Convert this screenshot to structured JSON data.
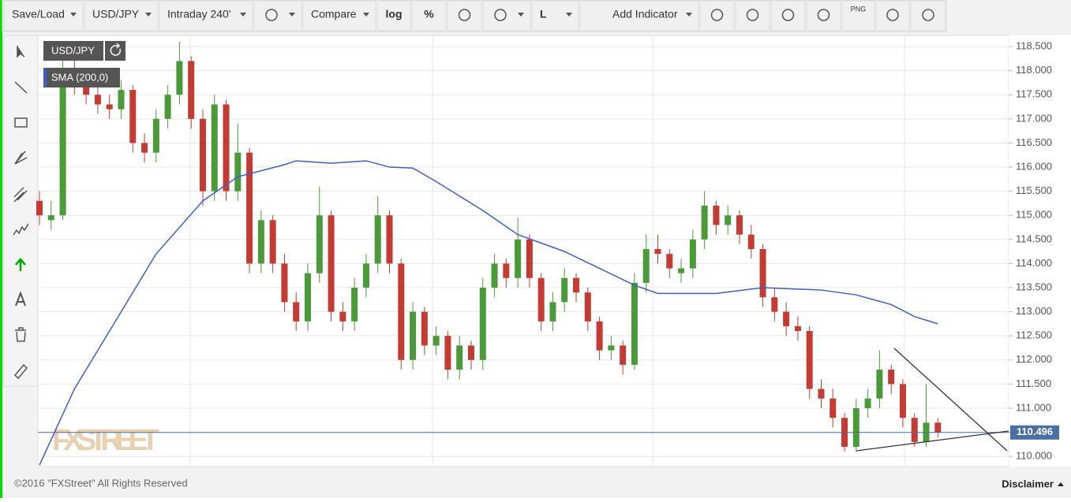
{
  "toolbar": {
    "items": [
      "Save/Load",
      "USD/JPY",
      "Intraday 240'",
      "Compare",
      "log",
      "%",
      "L",
      "Add Indicator"
    ],
    "png": "PNG"
  },
  "chart_data": {
    "type": "candlestick",
    "xlim": [
      0,
      83
    ],
    "ylim": [
      109.79,
      118.73
    ],
    "yticks": [
      {
        "value": 110,
        "label": "110.000"
      },
      {
        "value": 110.5,
        "label": "110.500"
      },
      {
        "value": 111,
        "label": "111.000"
      },
      {
        "value": 111.5,
        "label": "111.500"
      },
      {
        "value": 112,
        "label": "112.000"
      },
      {
        "value": 112.5,
        "label": "112.500"
      },
      {
        "value": 113,
        "label": "113.000"
      },
      {
        "value": 113.5,
        "label": "113.500"
      },
      {
        "value": 114,
        "label": "114.000"
      },
      {
        "value": 114.5,
        "label": "114.500"
      },
      {
        "value": 115,
        "label": "115.000"
      },
      {
        "value": 115.5,
        "label": "115.500"
      },
      {
        "value": 116,
        "label": "116.000"
      },
      {
        "value": 116.5,
        "label": "116.500"
      },
      {
        "value": 117,
        "label": "117.000"
      },
      {
        "value": 117.5,
        "label": "117.500"
      },
      {
        "value": 118,
        "label": "118.000"
      },
      {
        "value": 118.5,
        "label": "118.500"
      }
    ],
    "grid": true,
    "up_color": "#4a9a3a",
    "down_color": "#c43b33",
    "series": [
      {
        "name": "USD/JPY",
        "values": [
          [
            115.3,
            115.5,
            114.8,
            115.0
          ],
          [
            114.9,
            115.3,
            114.7,
            115.0
          ],
          [
            115.0,
            118.6,
            114.9,
            118.0
          ],
          [
            118.0,
            118.3,
            117.5,
            117.7
          ],
          [
            117.7,
            117.9,
            117.3,
            117.5
          ],
          [
            117.5,
            117.7,
            117.1,
            117.3
          ],
          [
            117.3,
            117.5,
            117.0,
            117.2
          ],
          [
            117.2,
            117.8,
            117.0,
            117.6
          ],
          [
            117.6,
            117.7,
            116.3,
            116.5
          ],
          [
            116.5,
            116.7,
            116.1,
            116.3
          ],
          [
            116.3,
            117.2,
            116.1,
            117.0
          ],
          [
            117.0,
            117.7,
            116.8,
            117.5
          ],
          [
            117.5,
            118.6,
            117.3,
            118.2
          ],
          [
            118.2,
            118.3,
            116.8,
            117.0
          ],
          [
            117.0,
            117.2,
            115.2,
            115.5
          ],
          [
            115.5,
            117.5,
            115.3,
            117.3
          ],
          [
            117.3,
            117.4,
            115.3,
            115.5
          ],
          [
            115.5,
            116.9,
            115.3,
            116.3
          ],
          [
            116.3,
            116.4,
            113.8,
            114.0
          ],
          [
            114.0,
            115.1,
            113.8,
            114.9
          ],
          [
            114.9,
            115.0,
            113.8,
            114.0
          ],
          [
            114.0,
            114.2,
            113.0,
            113.2
          ],
          [
            113.2,
            113.4,
            112.6,
            112.8
          ],
          [
            112.8,
            114.0,
            112.6,
            113.8
          ],
          [
            113.8,
            115.6,
            113.6,
            115.0
          ],
          [
            115.0,
            115.1,
            112.8,
            113.0
          ],
          [
            113.0,
            113.2,
            112.6,
            112.8
          ],
          [
            112.8,
            113.7,
            112.6,
            113.5
          ],
          [
            113.5,
            114.2,
            113.3,
            114.0
          ],
          [
            114.0,
            115.4,
            113.8,
            115.0
          ],
          [
            115.0,
            115.1,
            113.8,
            114.0
          ],
          [
            114.0,
            114.1,
            111.8,
            112.0
          ],
          [
            112.0,
            113.2,
            111.8,
            113.0
          ],
          [
            113.0,
            113.1,
            112.1,
            112.3
          ],
          [
            112.3,
            112.7,
            112.1,
            112.5
          ],
          [
            112.5,
            112.6,
            111.6,
            111.8
          ],
          [
            111.8,
            112.5,
            111.6,
            112.3
          ],
          [
            112.3,
            112.4,
            111.8,
            112.0
          ],
          [
            112.0,
            113.7,
            111.8,
            113.5
          ],
          [
            113.5,
            114.2,
            113.3,
            114.0
          ],
          [
            114.0,
            114.1,
            113.5,
            113.7
          ],
          [
            113.7,
            114.95,
            113.5,
            114.5
          ],
          [
            114.5,
            114.6,
            113.5,
            113.7
          ],
          [
            113.7,
            113.8,
            112.6,
            112.8
          ],
          [
            112.8,
            113.4,
            112.6,
            113.2
          ],
          [
            113.2,
            113.9,
            113.0,
            113.7
          ],
          [
            113.7,
            113.8,
            113.2,
            113.4
          ],
          [
            113.4,
            113.5,
            112.6,
            112.8
          ],
          [
            112.8,
            112.9,
            112.0,
            112.2
          ],
          [
            112.2,
            112.5,
            112.0,
            112.3
          ],
          [
            112.3,
            112.4,
            111.7,
            111.9
          ],
          [
            111.9,
            113.8,
            111.8,
            113.6
          ],
          [
            113.6,
            114.6,
            113.4,
            114.3
          ],
          [
            114.3,
            114.6,
            114.0,
            114.2
          ],
          [
            114.2,
            114.3,
            113.7,
            113.9
          ],
          [
            113.8,
            114.1,
            113.6,
            113.9
          ],
          [
            113.9,
            114.7,
            113.7,
            114.5
          ],
          [
            114.5,
            115.5,
            114.3,
            115.2
          ],
          [
            115.2,
            115.3,
            114.6,
            114.8
          ],
          [
            114.8,
            115.2,
            114.6,
            115.0
          ],
          [
            115.0,
            115.1,
            114.4,
            114.6
          ],
          [
            114.6,
            114.8,
            114.1,
            114.3
          ],
          [
            114.3,
            114.4,
            113.1,
            113.3
          ],
          [
            113.3,
            113.5,
            112.8,
            113.0
          ],
          [
            113.0,
            113.2,
            112.5,
            112.7
          ],
          [
            112.7,
            112.9,
            112.4,
            112.6
          ],
          [
            112.6,
            112.7,
            111.2,
            111.4
          ],
          [
            111.4,
            111.6,
            111.0,
            111.2
          ],
          [
            111.2,
            111.4,
            110.6,
            110.8
          ],
          [
            110.8,
            110.9,
            110.1,
            110.2
          ],
          [
            110.2,
            111.2,
            110.1,
            111.0
          ],
          [
            111.0,
            111.4,
            110.8,
            111.2
          ],
          [
            111.2,
            112.2,
            111.0,
            111.8
          ],
          [
            111.8,
            111.9,
            111.3,
            111.5
          ],
          [
            111.5,
            111.6,
            110.6,
            110.8
          ],
          [
            110.8,
            110.9,
            110.2,
            110.3
          ],
          [
            110.3,
            111.5,
            110.2,
            110.7
          ],
          [
            110.7,
            110.8,
            110.4,
            110.5
          ]
        ]
      },
      {
        "name": "SMA (200,0)",
        "type": "line",
        "color": "#3a5fd0",
        "x": [
          0,
          3,
          7,
          10,
          14,
          17,
          21,
          22,
          25,
          28,
          30,
          32,
          34,
          38,
          41,
          45,
          48,
          51,
          53,
          56,
          58,
          62,
          67,
          70,
          73,
          75,
          77
        ],
        "values": [
          109.82,
          111.4,
          113.0,
          114.2,
          115.3,
          115.8,
          116.05,
          116.13,
          116.08,
          116.13,
          116.0,
          115.98,
          115.7,
          115.1,
          114.6,
          114.25,
          113.9,
          113.55,
          113.38,
          113.38,
          113.38,
          113.5,
          113.45,
          113.35,
          113.15,
          112.9,
          112.75
        ]
      }
    ],
    "last_price": {
      "value": 110.496,
      "label": "110.496",
      "color": "#4a6fa5"
    },
    "watermark": "FXSTREET"
  },
  "footer": {
    "copyright": "©2016 \"FXStreet\" All Rights Reserved",
    "disclaimer": "Disclaimer"
  }
}
